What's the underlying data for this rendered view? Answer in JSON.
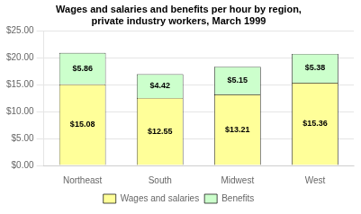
{
  "chart_data": {
    "type": "bar",
    "title": "Wages and salaries and benefits per hour by region,\nprivate industry workers, March 1999",
    "categories": [
      "Northeast",
      "South",
      "Midwest",
      "West"
    ],
    "series": [
      {
        "name": "Wages and salaries",
        "color": "#FFFF99",
        "values": [
          15.08,
          12.55,
          13.21,
          15.36
        ],
        "value_labels": [
          "$15.08",
          "$12.55",
          "$13.21",
          "$15.36"
        ]
      },
      {
        "name": "Benefits",
        "color": "#CCFFCC",
        "values": [
          5.86,
          4.42,
          5.15,
          5.38
        ],
        "value_labels": [
          "$5.86",
          "$4.42",
          "$5.15",
          "$5.38"
        ]
      }
    ],
    "stacked": true,
    "data_labels": true,
    "ylim": [
      0,
      25
    ],
    "yticks": [
      {
        "value": 0,
        "label": "$0.00"
      },
      {
        "value": 5,
        "label": "$5.00"
      },
      {
        "value": 10,
        "label": "$10.00"
      },
      {
        "value": 15,
        "label": "$15.00"
      },
      {
        "value": 20,
        "label": "$20.00"
      },
      {
        "value": 25,
        "label": "$25.00"
      }
    ],
    "grid": true,
    "legend": "bottom"
  }
}
